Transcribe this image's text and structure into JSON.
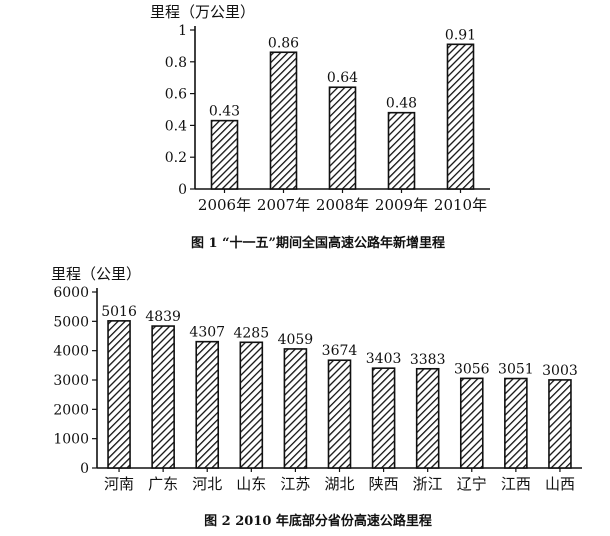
{
  "chart_data": [
    {
      "type": "bar",
      "ylabel": "里程（万公里）",
      "ylim": [
        0,
        1
      ],
      "yticks": [
        "0",
        "0.2",
        "0.4",
        "0.6",
        "0.8",
        "1"
      ],
      "categories": [
        "2006年",
        "2007年",
        "2008年",
        "2009年",
        "2010年"
      ],
      "values": [
        0.43,
        0.86,
        0.64,
        0.48,
        0.91
      ],
      "value_labels": [
        "0.43",
        "0.86",
        "0.64",
        "0.48",
        "0.91"
      ],
      "caption": "图 1 “十一五”期间全国高速公路年新增里程",
      "grid": false,
      "fill": "diagonal-hatch",
      "colors": {
        "bar_stroke": "#111111",
        "hatch": "#111111",
        "bar_bg": "#ffffff"
      }
    },
    {
      "type": "bar",
      "ylabel": "里程（公里）",
      "ylim": [
        0,
        6000
      ],
      "yticks": [
        "0",
        "1000",
        "2000",
        "3000",
        "4000",
        "5000",
        "6000"
      ],
      "categories": [
        "河南",
        "广东",
        "河北",
        "山东",
        "江苏",
        "湖北",
        "陕西",
        "浙江",
        "辽宁",
        "江西",
        "山西"
      ],
      "values": [
        5016,
        4839,
        4307,
        4285,
        4059,
        3674,
        3403,
        3383,
        3056,
        3051,
        3003
      ],
      "value_labels": [
        "5016",
        "4839",
        "4307",
        "4285",
        "4059",
        "3674",
        "3403",
        "3383",
        "3056",
        "3051",
        "3003"
      ],
      "caption": "图 2 2010 年底部分省份高速公路里程",
      "grid": false,
      "fill": "diagonal-hatch",
      "colors": {
        "bar_stroke": "#111111",
        "hatch": "#111111",
        "bar_bg": "#ffffff"
      }
    }
  ]
}
